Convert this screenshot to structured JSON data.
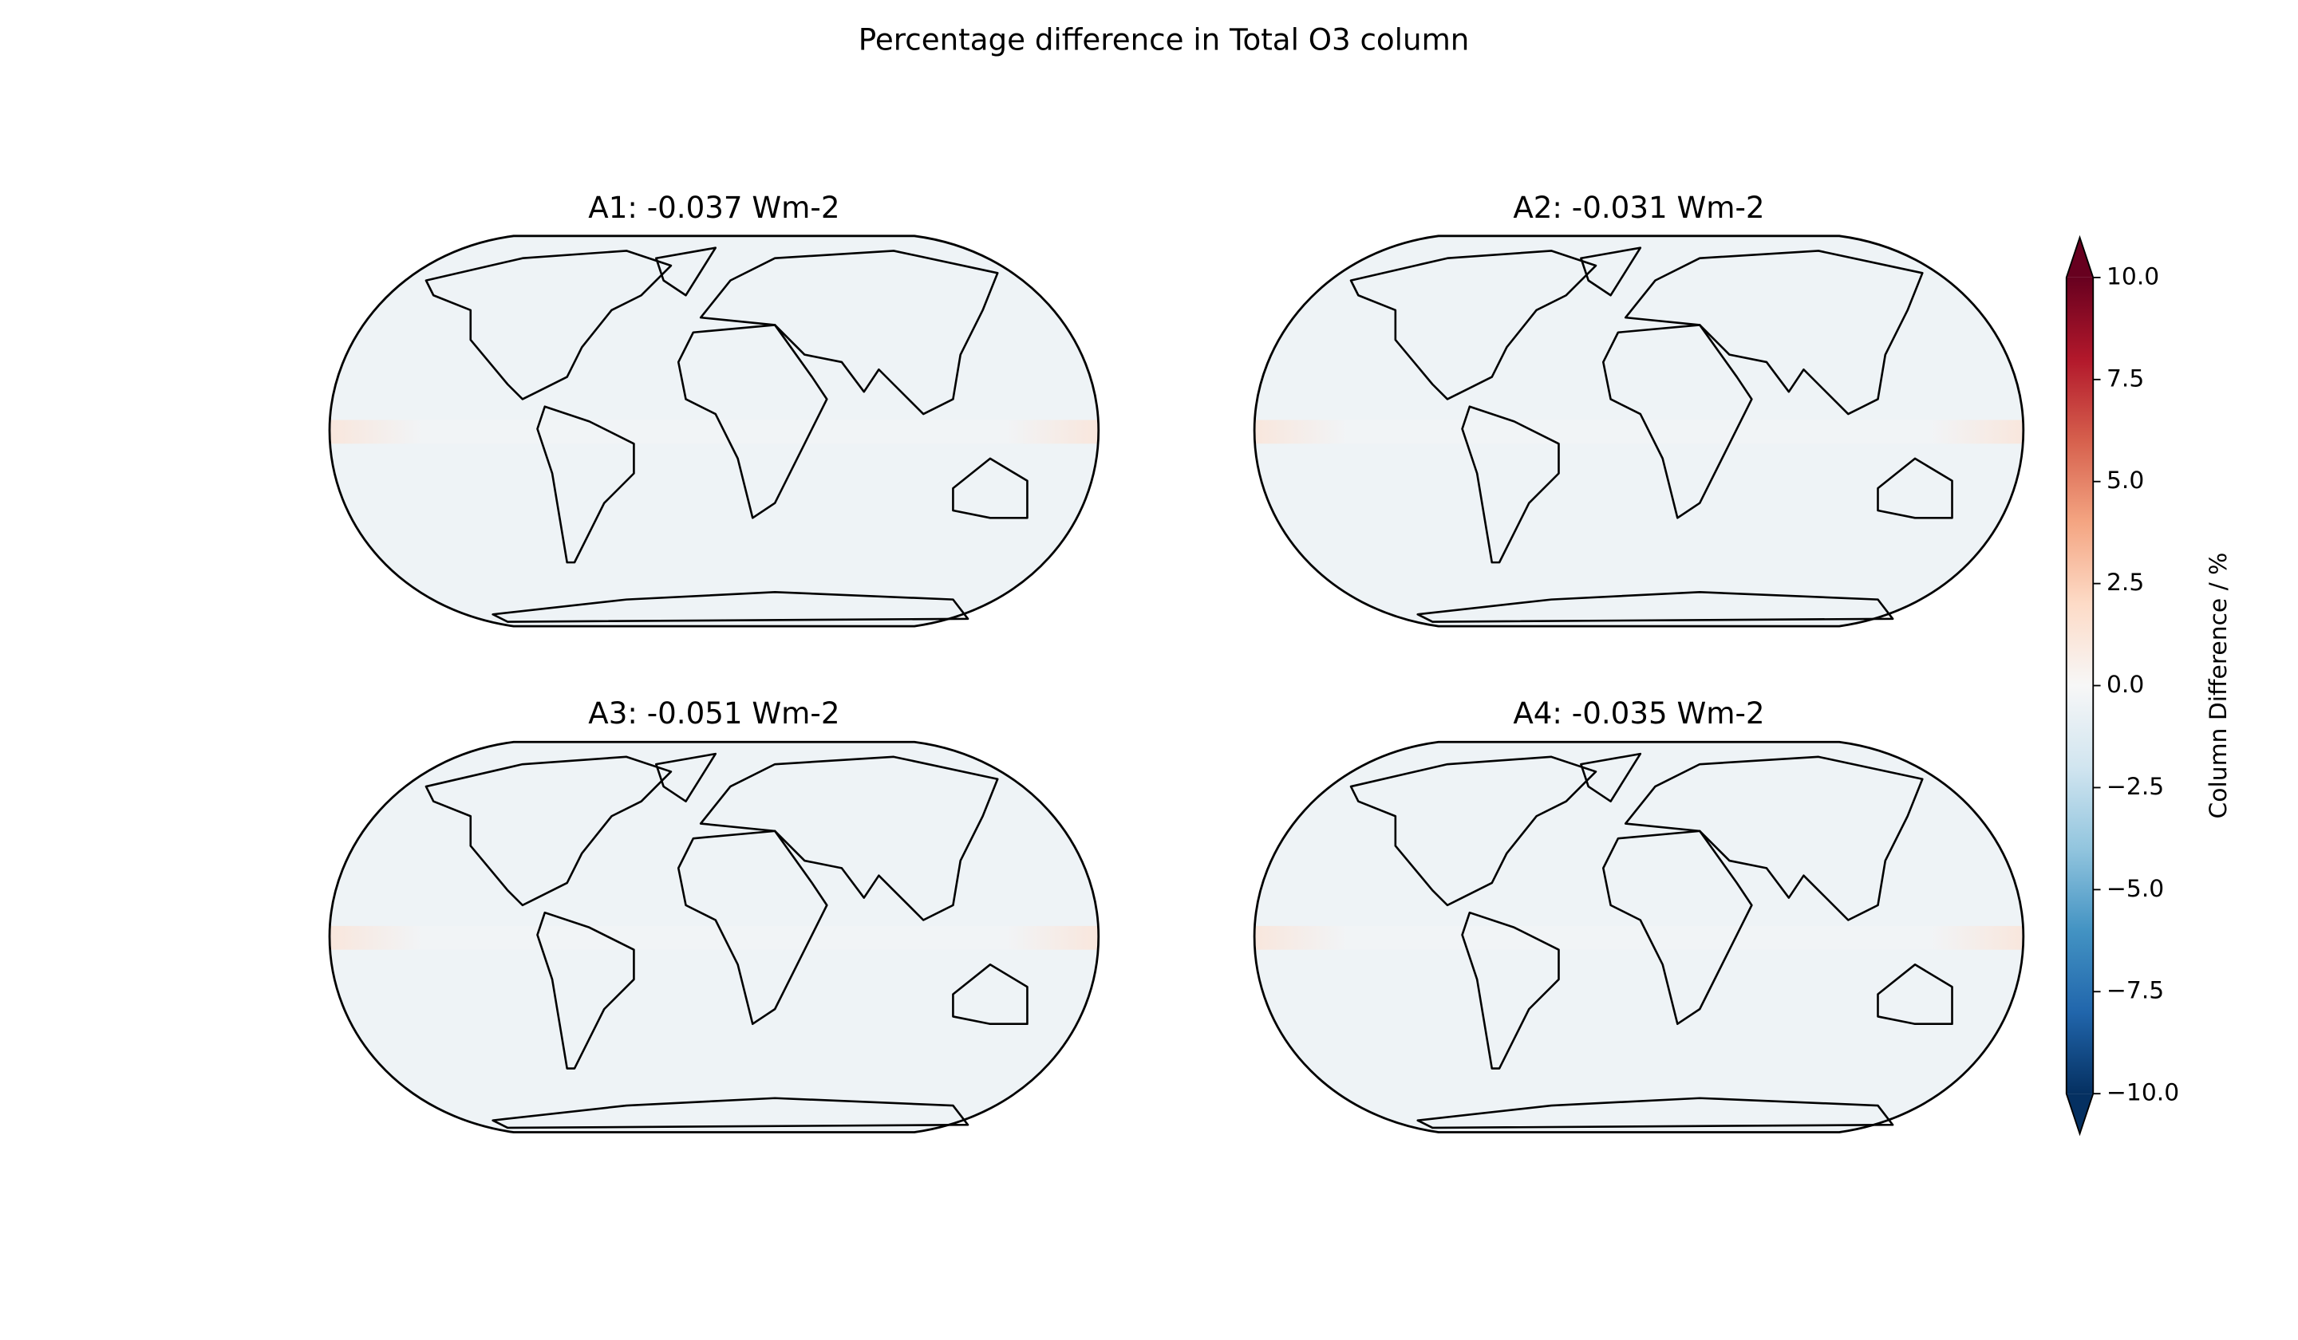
{
  "chart_data": {
    "type": "map",
    "title": "Percentage difference in Total O3 column",
    "panels": [
      {
        "title": "A1: -0.037 Wm-2"
      },
      {
        "title": "A2: -0.031 Wm-2"
      },
      {
        "title": "A3: -0.051 Wm-2"
      },
      {
        "title": "A4: -0.035 Wm-2"
      }
    ],
    "colorbar": {
      "label": "Column Difference / %",
      "lim": [
        -10,
        10
      ],
      "extend": "both",
      "colormap": [
        "#053061",
        "#2166ac",
        "#4393c3",
        "#92c5de",
        "#d1e5f0",
        "#f7f7f7",
        "#fddbc7",
        "#f4a582",
        "#d6604d",
        "#b2182b",
        "#67001f"
      ],
      "ticks": [
        {
          "value": -10,
          "label": "−10.0"
        },
        {
          "value": -7.5,
          "label": "−7.5"
        },
        {
          "value": -5,
          "label": "−5.0"
        },
        {
          "value": -2.5,
          "label": "−2.5"
        },
        {
          "value": 0,
          "label": "0.0"
        },
        {
          "value": 2.5,
          "label": "2.5"
        },
        {
          "value": 5,
          "label": "5.0"
        },
        {
          "value": 7.5,
          "label": "7.5"
        },
        {
          "value": 10,
          "label": "10.0"
        }
      ]
    }
  }
}
